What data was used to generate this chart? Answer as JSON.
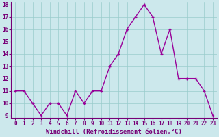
{
  "x": [
    0,
    1,
    2,
    3,
    4,
    5,
    6,
    7,
    8,
    9,
    10,
    11,
    12,
    13,
    14,
    15,
    16,
    17,
    18,
    19,
    20,
    21,
    22,
    23
  ],
  "y": [
    11,
    11,
    10,
    9,
    10,
    10,
    9,
    11,
    10,
    11,
    11,
    13,
    14,
    16,
    17,
    18,
    17,
    14,
    16,
    12,
    12,
    12,
    11,
    9
  ],
  "line_color": "#990099",
  "marker": "+",
  "marker_color": "#990099",
  "bg_color": "#cce8ec",
  "grid_color": "#99cccc",
  "xlabel": "Windchill (Refroidissement éolien,°C)",
  "ylim": [
    9,
    18
  ],
  "xlim": [
    -0.5,
    23.5
  ],
  "yticks": [
    9,
    10,
    11,
    12,
    13,
    14,
    15,
    16,
    17,
    18
  ],
  "xticks": [
    0,
    1,
    2,
    3,
    4,
    5,
    6,
    7,
    8,
    9,
    10,
    11,
    12,
    13,
    14,
    15,
    16,
    17,
    18,
    19,
    20,
    21,
    22,
    23
  ],
  "tick_label_fontsize": 5.5,
  "xlabel_fontsize": 6.5,
  "line_width": 1.0,
  "marker_size": 3.5
}
